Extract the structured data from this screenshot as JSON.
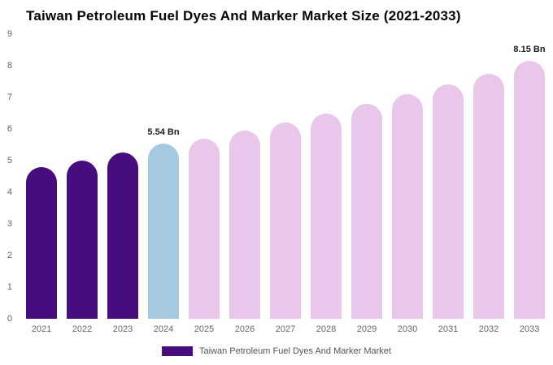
{
  "chart_data": {
    "type": "bar",
    "title": "Taiwan Petroleum Fuel Dyes And Marker Market Size (2021-2033)",
    "categories": [
      "2021",
      "2022",
      "2023",
      "2024",
      "2025",
      "2026",
      "2027",
      "2028",
      "2029",
      "2030",
      "2031",
      "2032",
      "2033"
    ],
    "values": [
      4.8,
      5.0,
      5.25,
      5.54,
      5.7,
      5.95,
      6.2,
      6.5,
      6.8,
      7.1,
      7.4,
      7.75,
      8.15
    ],
    "bar_roles": [
      "historical",
      "historical",
      "historical",
      "current",
      "forecast",
      "forecast",
      "forecast",
      "forecast",
      "forecast",
      "forecast",
      "forecast",
      "forecast",
      "forecast"
    ],
    "colors": {
      "historical": "#470c7e",
      "current": "#a6c9e2",
      "forecast": "#e8c7ea"
    },
    "value_labels": [
      {
        "category": "2024",
        "text": "5.54 Bn"
      },
      {
        "category": "2033",
        "text": "8.15 Bn"
      }
    ],
    "ylim": [
      0,
      9
    ],
    "yticks": [
      0,
      1,
      2,
      3,
      4,
      5,
      6,
      7,
      8,
      9
    ],
    "xlabel": "",
    "ylabel": "",
    "grid": false,
    "legend": {
      "position": "bottom",
      "label": "Taiwan Petroleum Fuel Dyes And Marker Market",
      "swatch_color": "#470c7e"
    }
  }
}
